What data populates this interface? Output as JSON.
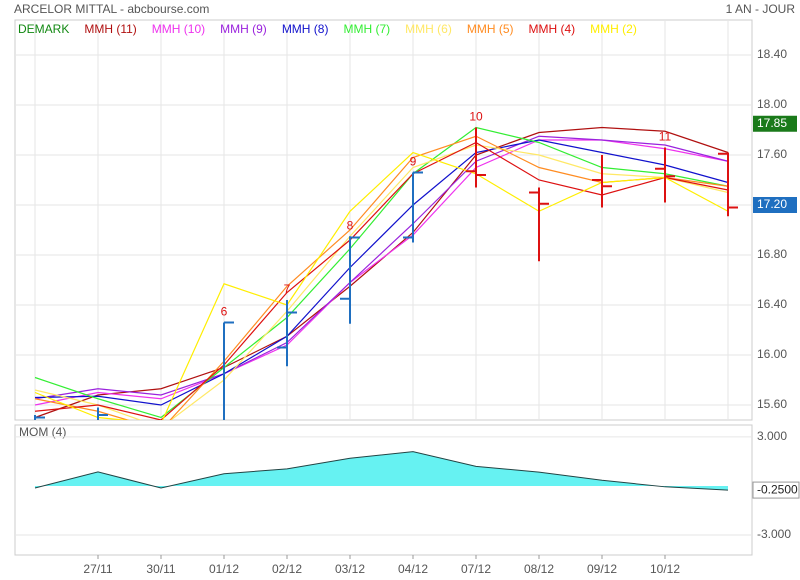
{
  "chart_data": [
    {
      "type": "ohlc",
      "title": "ARCELOR MITTAL - abcbourse.com",
      "subtitle": "1 AN - JOUR",
      "categories": [
        null,
        "27/11",
        "30/11",
        "01/12",
        "02/12",
        "03/12",
        "04/12",
        "07/12",
        "08/12",
        "09/12",
        "10/12",
        null
      ],
      "open": [
        15.45,
        15.45,
        15.4,
        15.3,
        16.06,
        16.45,
        16.94,
        17.47,
        17.3,
        17.4,
        17.49,
        17.61
      ],
      "high": [
        15.52,
        15.58,
        15.45,
        16.26,
        16.44,
        16.95,
        17.46,
        17.82,
        17.34,
        17.6,
        17.66,
        17.62
      ],
      "low": [
        15.35,
        15.3,
        15.2,
        15.25,
        15.91,
        16.25,
        16.9,
        17.34,
        16.75,
        17.18,
        17.22,
        17.11
      ],
      "close": [
        15.5,
        15.52,
        15.3,
        16.26,
        16.34,
        16.94,
        17.46,
        17.44,
        17.21,
        17.35,
        17.43,
        17.18
      ],
      "up_color": "#1f6fc0",
      "down_color": "#dd1111",
      "demark": {
        "name": "DEMARK",
        "color": "#118811",
        "labels": [
          null,
          null,
          null,
          "6",
          "7",
          "8",
          "9",
          "10",
          null,
          null,
          "11",
          null
        ],
        "label_color": "#dd1111"
      },
      "series": [
        {
          "name": "MMH (11)",
          "color": "#b01010",
          "values": [
            15.5,
            15.68,
            15.73,
            15.9,
            16.15,
            16.55,
            16.98,
            17.6,
            17.78,
            17.82,
            17.79,
            17.62
          ]
        },
        {
          "name": "MMH (10)",
          "color": "#ee33ee",
          "values": [
            15.6,
            15.7,
            15.65,
            15.85,
            16.08,
            16.58,
            16.96,
            17.5,
            17.72,
            17.72,
            17.65,
            17.55
          ]
        },
        {
          "name": "MMH (9)",
          "color": "#9a22dd",
          "values": [
            15.65,
            15.73,
            15.68,
            15.85,
            16.1,
            16.58,
            17.05,
            17.55,
            17.75,
            17.72,
            17.68,
            17.55
          ]
        },
        {
          "name": "MMH (8)",
          "color": "#1111cc",
          "values": [
            15.66,
            15.67,
            15.6,
            15.85,
            16.15,
            16.7,
            17.2,
            17.62,
            17.72,
            17.62,
            17.52,
            17.38
          ]
        },
        {
          "name": "MMH (7)",
          "color": "#33ee33",
          "values": [
            15.82,
            15.65,
            15.5,
            15.9,
            16.3,
            16.85,
            17.45,
            17.82,
            17.7,
            17.5,
            17.45,
            17.35
          ]
        },
        {
          "name": "MMH (6)",
          "color": "#ffe866",
          "values": [
            15.72,
            15.6,
            15.42,
            15.8,
            16.35,
            16.95,
            17.5,
            17.68,
            17.6,
            17.45,
            17.42,
            17.3
          ]
        },
        {
          "name": "MMH (5)",
          "color": "#ff8c22",
          "values": [
            15.65,
            15.55,
            15.4,
            15.95,
            16.55,
            17.0,
            17.58,
            17.75,
            17.5,
            17.38,
            17.42,
            17.35
          ]
        },
        {
          "name": "MMH (4)",
          "color": "#dd1111",
          "values": [
            15.55,
            15.6,
            15.48,
            15.92,
            16.5,
            16.92,
            17.45,
            17.7,
            17.4,
            17.28,
            17.42,
            17.32
          ]
        },
        {
          "name": "MMH (2)",
          "color": "#ffee00",
          "values": [
            15.7,
            15.5,
            15.45,
            16.57,
            16.4,
            17.15,
            17.62,
            17.45,
            17.15,
            17.38,
            17.42,
            17.15
          ]
        }
      ],
      "ylim": [
        15.48,
        18.68
      ],
      "yticks": [
        {
          "value": 15.6,
          "label": "15.60"
        },
        {
          "value": 16.0,
          "label": "16.00"
        },
        {
          "value": 16.4,
          "label": "16.40"
        },
        {
          "value": 16.8,
          "label": "16.80"
        },
        {
          "value": 17.2,
          "label": "17.20"
        },
        {
          "value": 17.6,
          "label": "17.60"
        },
        {
          "value": 18.0,
          "label": "18.00"
        },
        {
          "value": 18.4,
          "label": "18.40"
        }
      ],
      "price_labels": [
        {
          "value": 17.85,
          "label": "17.85",
          "color": "#1a7a1a"
        },
        {
          "value": 17.2,
          "label": "17.20",
          "color": "#1f6fc0"
        }
      ],
      "grid": true
    },
    {
      "type": "area",
      "title": "MOM (4)",
      "values": [
        -0.12,
        0.86,
        -0.12,
        0.75,
        1.05,
        1.7,
        2.1,
        1.2,
        0.85,
        0.35,
        -0.05,
        -0.25
      ],
      "color": "#66f2f2",
      "line_color": "#224444",
      "ylim": [
        -4.22,
        3.73
      ],
      "yticks": [
        {
          "value": 3,
          "label": "3.000"
        },
        {
          "value": -3,
          "label": "-3.000"
        }
      ],
      "last_label": {
        "value": -0.25,
        "label": "-0.2500"
      },
      "grid": true
    }
  ]
}
